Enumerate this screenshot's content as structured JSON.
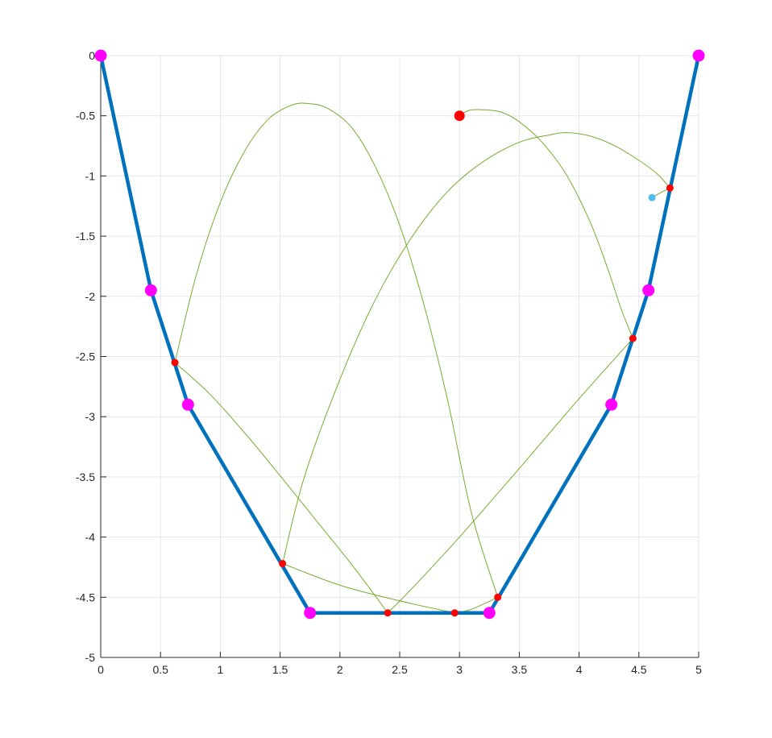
{
  "chart_data": {
    "type": "line",
    "title": "",
    "xlabel": "",
    "ylabel": "",
    "xlim": [
      0,
      5
    ],
    "ylim": [
      -5,
      0
    ],
    "grid": true,
    "legend": "none",
    "x_ticks": [
      0,
      0.5,
      1,
      1.5,
      2,
      2.5,
      3,
      3.5,
      4,
      4.5,
      5
    ],
    "x_tick_labels": [
      "0",
      "0.5",
      "1",
      "1.5",
      "2",
      "2.5",
      "3",
      "3.5",
      "4",
      "4.5",
      "5"
    ],
    "y_ticks": [
      0,
      -0.5,
      -1,
      -1.5,
      -2,
      -2.5,
      -3,
      -3.5,
      -4,
      -4.5,
      -5
    ],
    "y_tick_labels": [
      "0",
      "-0.5",
      "-1",
      "-1.5",
      "-2",
      "-2.5",
      "-3",
      "-3.5",
      "-4",
      "-4.5",
      "-5"
    ],
    "colors": {
      "boundary": "#0072BD",
      "vertex": "#FF00FF",
      "trajectory": "#77AC30",
      "bounce": "#FF0000",
      "end": "#4DBEEE",
      "grid": "#E6E6E6",
      "axis": "#262626"
    },
    "series": [
      {
        "role": "boundary",
        "x": [
          0,
          0.42,
          0.73,
          1.75,
          3.25,
          4.27,
          4.58,
          5
        ],
        "y": [
          0,
          -1.95,
          -2.9,
          -4.63,
          -4.63,
          -2.9,
          -1.95,
          0
        ]
      },
      {
        "role": "vertices",
        "x": [
          0,
          0.42,
          0.73,
          1.75,
          3.25,
          4.27,
          4.58,
          5
        ],
        "y": [
          0,
          -1.95,
          -2.9,
          -4.63,
          -4.63,
          -2.9,
          -1.95,
          0
        ]
      },
      {
        "role": "trajectory",
        "segments": [
          {
            "x": [
              3.0,
              3.08,
              3.2,
              3.35,
              3.5,
              3.7,
              3.9,
              4.1,
              4.25,
              4.35,
              4.45
            ],
            "y": [
              -0.5,
              -0.455,
              -0.45,
              -0.47,
              -0.55,
              -0.73,
              -1.0,
              -1.4,
              -1.8,
              -2.1,
              -2.35
            ]
          },
          {
            "x": [
              4.45,
              4.0,
              3.5,
              3.0,
              2.6,
              2.4
            ],
            "y": [
              -2.35,
              -2.85,
              -3.43,
              -4.0,
              -4.43,
              -4.63
            ]
          },
          {
            "x": [
              2.4,
              2.1,
              1.8,
              1.5,
              1.2,
              0.9,
              0.62
            ],
            "y": [
              -4.63,
              -4.23,
              -3.86,
              -3.49,
              -3.13,
              -2.8,
              -2.55
            ]
          },
          {
            "x": [
              0.62,
              0.8,
              1.0,
              1.2,
              1.4,
              1.6,
              1.75,
              1.9,
              2.1,
              2.3,
              2.5,
              2.7,
              2.9,
              3.1,
              3.32
            ],
            "y": [
              -2.55,
              -1.82,
              -1.22,
              -0.8,
              -0.53,
              -0.41,
              -0.4,
              -0.44,
              -0.6,
              -0.93,
              -1.41,
              -2.06,
              -2.86,
              -3.8,
              -4.5
            ]
          },
          {
            "x": [
              3.32,
              3.1,
              2.96
            ],
            "y": [
              -4.5,
              -4.6,
              -4.63
            ]
          },
          {
            "x": [
              2.96,
              2.5,
              2.0,
              1.52
            ],
            "y": [
              -4.63,
              -4.53,
              -4.4,
              -4.22
            ]
          },
          {
            "x": [
              1.52,
              1.7,
              2.0,
              2.3,
              2.6,
              2.9,
              3.2,
              3.5,
              3.75,
              3.9,
              4.1,
              4.3,
              4.5,
              4.65,
              4.76
            ],
            "y": [
              -4.22,
              -3.51,
              -2.69,
              -2.02,
              -1.51,
              -1.13,
              -0.88,
              -0.72,
              -0.66,
              -0.64,
              -0.67,
              -0.75,
              -0.87,
              -0.98,
              -1.1
            ]
          },
          {
            "x": [
              4.76,
              4.68,
              4.61
            ],
            "y": [
              -1.1,
              -1.14,
              -1.18
            ]
          }
        ]
      },
      {
        "role": "bounce_points",
        "x": [
          4.76,
          4.45,
          3.32,
          2.96,
          2.4,
          1.52,
          0.62
        ],
        "y": [
          -1.1,
          -2.35,
          -4.5,
          -4.63,
          -4.63,
          -4.22,
          -2.55
        ]
      },
      {
        "role": "start_point",
        "x": [
          3.0
        ],
        "y": [
          -0.5
        ]
      },
      {
        "role": "end_point",
        "x": [
          4.61
        ],
        "y": [
          -1.18
        ]
      }
    ]
  }
}
